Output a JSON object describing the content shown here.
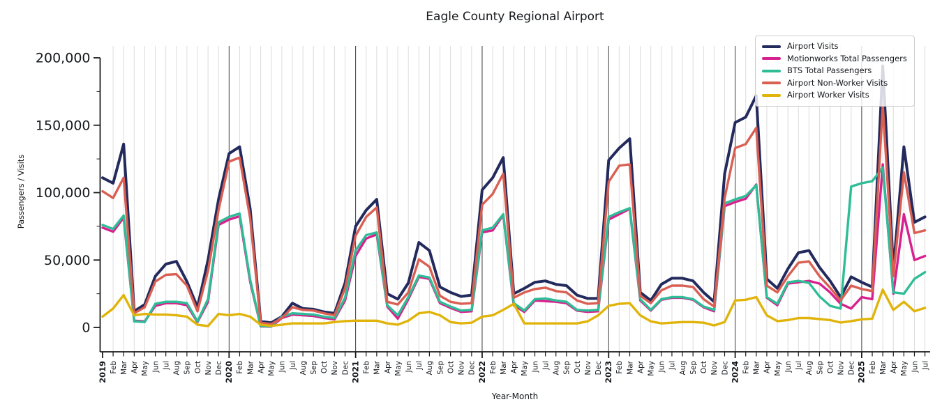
{
  "window": {
    "title": "Eagle County Regional Airport"
  },
  "chart_data": {
    "type": "line",
    "title": "Eagle County Regional Airport",
    "xlabel": "Year-Month",
    "ylabel": "Passengers / Visits",
    "legend_position": "upper right",
    "grid": "vertical monthly gridlines on, darker line at each year start",
    "ylim": [
      -18000,
      206000
    ],
    "yticks": [
      {
        "value": 0,
        "label": "0"
      },
      {
        "value": 50000,
        "label": "50,000"
      },
      {
        "value": 100000,
        "label": "100,000"
      },
      {
        "value": 150000,
        "label": "150,000"
      },
      {
        "value": 200000,
        "label": "200,000"
      }
    ],
    "minor_yticks": [
      25000,
      75000,
      125000,
      175000
    ],
    "year_tick_indices": [
      0,
      12,
      24,
      36,
      48,
      60,
      72
    ],
    "x_labels": [
      "2019",
      "Feb",
      "Mar",
      "Apr",
      "May",
      "Jun",
      "Jul",
      "Aug",
      "Sep",
      "Oct",
      "Nov",
      "Dec",
      "2020",
      "Feb",
      "Mar",
      "Apr",
      "May",
      "Jun",
      "Jul",
      "Aug",
      "Sep",
      "Oct",
      "Nov",
      "Dec",
      "2021",
      "Feb",
      "Mar",
      "Apr",
      "May",
      "Jun",
      "Jul",
      "Aug",
      "Sep",
      "Oct",
      "Nov",
      "Dec",
      "2022",
      "Feb",
      "Mar",
      "Apr",
      "May",
      "Jun",
      "Jul",
      "Aug",
      "Sep",
      "Oct",
      "Nov",
      "Dec",
      "2023",
      "Feb",
      "Mar",
      "Apr",
      "May",
      "Jun",
      "Jul",
      "Aug",
      "Sep",
      "Oct",
      "Nov",
      "Dec",
      "2024",
      "Feb",
      "Mar",
      "Apr",
      "May",
      "Jun",
      "Jul",
      "Aug",
      "Sep",
      "Oct",
      "Nov",
      "Dec",
      "2025",
      "Feb",
      "Mar",
      "Apr",
      "May",
      "Jun",
      "Jul"
    ],
    "series": [
      {
        "name": "Airport Visits",
        "color": "#232a5c",
        "width": 4,
        "values": [
          111000,
          107000,
          136000,
          12000,
          17000,
          38000,
          47000,
          49000,
          34000,
          15000,
          50000,
          95000,
          129000,
          134000,
          88000,
          4500,
          3500,
          8000,
          18000,
          14000,
          13500,
          11500,
          10500,
          33000,
          75000,
          87000,
          95000,
          25000,
          21000,
          33000,
          63000,
          57000,
          30000,
          26000,
          23000,
          24000,
          102000,
          111000,
          126000,
          25000,
          29000,
          33500,
          34500,
          32000,
          31000,
          24000,
          21500,
          21500,
          124000,
          133000,
          140000,
          26000,
          20000,
          32000,
          36500,
          36500,
          34500,
          26000,
          19000,
          114000,
          152000,
          156000,
          172000,
          36000,
          29000,
          43500,
          55500,
          57000,
          44500,
          34500,
          22500,
          37500,
          33500,
          30000,
          194000,
          43000,
          134000,
          78000,
          82000
        ]
      },
      {
        "name": "Motionworks Total Passengers",
        "color": "#d7218e",
        "width": 3.4,
        "values": [
          74000,
          71000,
          81500,
          5000,
          4500,
          16000,
          18000,
          18000,
          16500,
          4000,
          19000,
          76000,
          80000,
          82500,
          34000,
          800,
          600,
          7000,
          9500,
          9000,
          8500,
          7000,
          6000,
          20000,
          53000,
          66000,
          69000,
          15500,
          6500,
          21000,
          37500,
          36000,
          18000,
          14500,
          11500,
          12000,
          70500,
          72000,
          83500,
          16500,
          11500,
          20000,
          19500,
          19000,
          18000,
          12500,
          11500,
          12000,
          80000,
          84000,
          88000,
          20000,
          12500,
          20500,
          22000,
          22000,
          20500,
          15000,
          12000,
          90000,
          93000,
          95500,
          106000,
          22000,
          16500,
          32500,
          33500,
          34500,
          32500,
          26000,
          17500,
          14000,
          22500,
          21000,
          121000,
          25000,
          84000,
          50000,
          53000
        ]
      },
      {
        "name": "BTS Total Passengers",
        "color": "#2ebd96",
        "width": 3.4,
        "values": [
          76000,
          73000,
          83000,
          4500,
          4000,
          17500,
          19000,
          19000,
          18000,
          4500,
          21000,
          78000,
          82000,
          84500,
          35500,
          1000,
          800,
          8000,
          10500,
          10000,
          9500,
          8000,
          7000,
          22000,
          57000,
          68500,
          70500,
          16500,
          9000,
          22500,
          38500,
          37000,
          19000,
          15500,
          12500,
          13000,
          72000,
          74000,
          84000,
          18000,
          12500,
          21000,
          21500,
          20000,
          19000,
          13000,
          12500,
          13000,
          82000,
          85500,
          88500,
          21000,
          13000,
          21000,
          22500,
          22500,
          21000,
          15500,
          13000,
          92000,
          95000,
          97500,
          105500,
          22500,
          17500,
          33500,
          34500,
          33000,
          23000,
          16000,
          14000,
          104500,
          107000,
          108500,
          118500,
          26000,
          25000,
          36000,
          41000
        ]
      },
      {
        "name": "Airport Non-Worker Visits",
        "color": "#d95f52",
        "width": 3.4,
        "values": [
          101000,
          96000,
          111000,
          10500,
          15000,
          34000,
          39000,
          39500,
          31000,
          12000,
          42000,
          87000,
          123000,
          126000,
          81000,
          3500,
          2500,
          7000,
          15000,
          13000,
          12500,
          10500,
          9000,
          29000,
          68000,
          82000,
          89000,
          19000,
          17000,
          26000,
          50500,
          45000,
          23500,
          19000,
          17500,
          18000,
          91000,
          99000,
          114000,
          22000,
          26000,
          28500,
          29500,
          27000,
          26000,
          20000,
          17500,
          18000,
          108000,
          120000,
          121000,
          23500,
          18000,
          27500,
          31000,
          31000,
          30000,
          21000,
          15500,
          96000,
          133000,
          136000,
          148000,
          31000,
          26000,
          38000,
          48000,
          49000,
          38000,
          29500,
          20000,
          31000,
          28500,
          27000,
          165000,
          38000,
          115000,
          70000,
          72000
        ]
      },
      {
        "name": "Airport Worker Visits",
        "color": "#e0b40a",
        "width": 3.4,
        "values": [
          8000,
          14000,
          24000,
          9000,
          10000,
          9500,
          9500,
          9000,
          8000,
          2000,
          1000,
          10000,
          9000,
          10000,
          8000,
          2000,
          1200,
          2000,
          3000,
          3000,
          3000,
          3000,
          4000,
          4700,
          5000,
          5000,
          5000,
          3000,
          2000,
          5000,
          10500,
          11500,
          9000,
          4000,
          3000,
          3500,
          8000,
          9000,
          13000,
          17500,
          3000,
          3000,
          3000,
          3000,
          3000,
          3000,
          4500,
          9000,
          16000,
          17500,
          18000,
          9000,
          4500,
          3000,
          3500,
          4000,
          4000,
          3500,
          1500,
          4000,
          20000,
          20500,
          22500,
          9000,
          4700,
          5500,
          7000,
          7000,
          6200,
          5500,
          3600,
          4700,
          6000,
          6500,
          28000,
          13000,
          19000,
          12000,
          14500
        ]
      }
    ],
    "colors": {
      "grid_month": "#dcdcdc",
      "grid_year": "#3a3a3a",
      "axis": "#1a1a1a",
      "text": "#15181c",
      "legend_border": "#cccccc"
    }
  }
}
